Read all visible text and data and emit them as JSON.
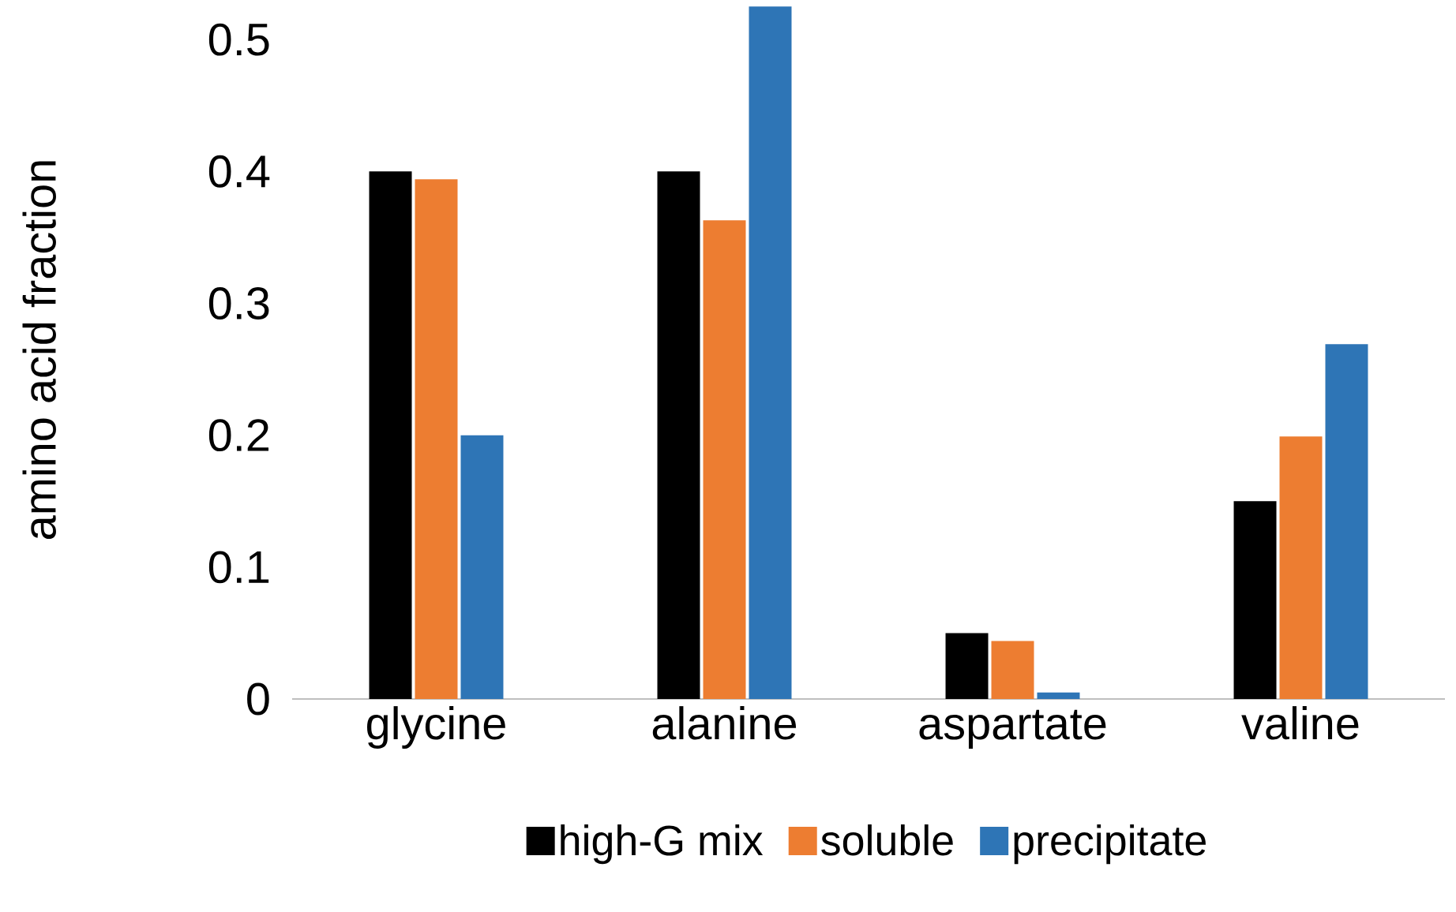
{
  "chart_data": {
    "type": "bar",
    "ylabel": "amino acid fraction",
    "categories": [
      "glycine",
      "alanine",
      "aspartate",
      "valine"
    ],
    "series": [
      {
        "name": "high-G mix",
        "color": "#000000",
        "values": [
          0.4,
          0.4,
          0.05,
          0.15
        ]
      },
      {
        "name": "soluble",
        "color": "#ed7d31",
        "values": [
          0.394,
          0.363,
          0.044,
          0.199
        ]
      },
      {
        "name": "precipitate",
        "color": "#2e75b6",
        "values": [
          0.2,
          0.525,
          0.005,
          0.269
        ]
      }
    ],
    "ylim": [
      0,
      0.53
    ],
    "yticks": [
      0,
      0.1,
      0.2,
      0.3,
      0.4,
      0.5
    ],
    "grid": false,
    "legend": "bottom"
  }
}
